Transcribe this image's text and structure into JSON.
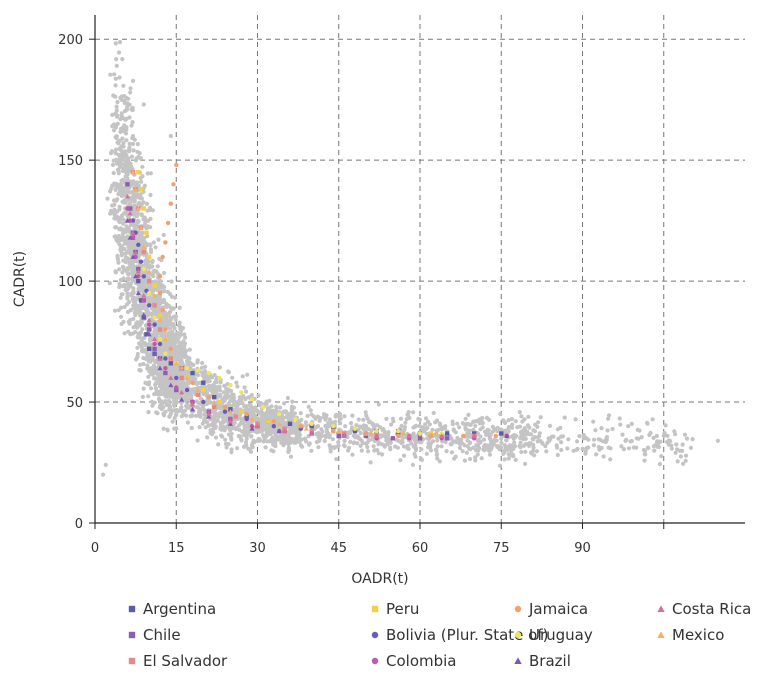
{
  "chart_data": {
    "type": "scatter",
    "title": "",
    "xlabel": "OADR(t)",
    "ylabel": "CADR(t)",
    "xlim": [
      0,
      120
    ],
    "ylim": [
      0,
      210
    ],
    "x_ticks": [
      0,
      15,
      30,
      45,
      60,
      75,
      90
    ],
    "y_ticks": [
      0,
      50,
      100,
      150,
      200
    ],
    "grid": true,
    "legend_position": "bottom",
    "background_points": {
      "color": "#c4c4c4",
      "description_of_trend": "All countries, hyperbolic decline of CADR as OADR rises",
      "curve_anchors": [
        {
          "x": 6,
          "y": 130
        },
        {
          "x": 8,
          "y": 110
        },
        {
          "x": 10,
          "y": 90
        },
        {
          "x": 13,
          "y": 70
        },
        {
          "x": 17,
          "y": 57
        },
        {
          "x": 22,
          "y": 48
        },
        {
          "x": 30,
          "y": 42
        },
        {
          "x": 40,
          "y": 38
        },
        {
          "x": 55,
          "y": 36
        },
        {
          "x": 75,
          "y": 35
        },
        {
          "x": 90,
          "y": 34
        },
        {
          "x": 110,
          "y": 34
        }
      ],
      "extreme_points": [
        {
          "x": 6.5,
          "y": 178
        },
        {
          "x": 9,
          "y": 173
        },
        {
          "x": 14,
          "y": 160
        },
        {
          "x": 1.5,
          "y": 20
        },
        {
          "x": 2,
          "y": 24
        },
        {
          "x": 115,
          "y": 34
        },
        {
          "x": 100,
          "y": 35
        },
        {
          "x": 105,
          "y": 36
        }
      ]
    },
    "series": [
      {
        "name": "Argentina",
        "color": "#5b5ea6",
        "shape": "square",
        "points": [
          [
            7,
            118
          ],
          [
            7.5,
            112
          ],
          [
            8,
            100
          ],
          [
            8.5,
            92
          ],
          [
            9,
            85
          ],
          [
            9.5,
            78
          ],
          [
            10,
            72
          ],
          [
            11,
            70
          ],
          [
            12,
            68
          ],
          [
            14,
            66
          ],
          [
            16,
            64
          ],
          [
            18,
            62
          ],
          [
            20,
            58
          ],
          [
            22,
            52
          ],
          [
            25,
            47
          ],
          [
            28,
            44
          ],
          [
            32,
            42
          ],
          [
            36,
            41
          ],
          [
            40,
            40
          ],
          [
            44,
            39
          ],
          [
            48,
            38
          ],
          [
            52,
            38
          ],
          [
            56,
            38
          ],
          [
            60,
            37
          ],
          [
            65,
            37
          ],
          [
            70,
            37
          ],
          [
            75,
            37
          ]
        ]
      },
      {
        "name": "Chile",
        "color": "#8e5fb0",
        "shape": "square",
        "points": [
          [
            6,
            140
          ],
          [
            6.5,
            130
          ],
          [
            7,
            120
          ],
          [
            8,
            105
          ],
          [
            9,
            92
          ],
          [
            10,
            80
          ],
          [
            11,
            72
          ],
          [
            13,
            62
          ],
          [
            15,
            55
          ],
          [
            18,
            50
          ],
          [
            21,
            46
          ],
          [
            25,
            43
          ],
          [
            30,
            40
          ],
          [
            35,
            38
          ],
          [
            40,
            37
          ],
          [
            45,
            36
          ],
          [
            50,
            36
          ],
          [
            55,
            35
          ],
          [
            60,
            35
          ],
          [
            65,
            35
          ],
          [
            70,
            36
          ]
        ]
      },
      {
        "name": "El Salvador",
        "color": "#e8888a",
        "shape": "square",
        "points": [
          [
            7,
            145
          ],
          [
            7.5,
            138
          ],
          [
            8,
            130
          ],
          [
            8.5,
            122
          ],
          [
            9,
            112
          ],
          [
            10,
            100
          ],
          [
            11,
            90
          ],
          [
            12,
            80
          ],
          [
            14,
            68
          ],
          [
            16,
            60
          ],
          [
            19,
            53
          ],
          [
            22,
            48
          ],
          [
            26,
            44
          ],
          [
            30,
            41
          ],
          [
            35,
            39
          ],
          [
            40,
            38
          ],
          [
            46,
            37
          ],
          [
            52,
            36
          ],
          [
            58,
            36
          ],
          [
            64,
            36
          ],
          [
            70,
            36
          ],
          [
            76,
            36
          ]
        ]
      },
      {
        "name": "Peru",
        "color": "#f2d04a",
        "shape": "square",
        "points": [
          [
            8,
            145
          ],
          [
            8.5,
            138
          ],
          [
            9,
            130
          ],
          [
            9.5,
            120
          ],
          [
            10,
            110
          ],
          [
            11,
            98
          ],
          [
            12,
            86
          ],
          [
            13,
            76
          ],
          [
            15,
            66
          ],
          [
            17,
            60
          ],
          [
            20,
            55
          ],
          [
            23,
            50
          ],
          [
            27,
            46
          ],
          [
            32,
            42
          ],
          [
            38,
            40
          ],
          [
            44,
            38
          ],
          [
            50,
            37
          ],
          [
            56,
            37
          ],
          [
            62,
            37
          ]
        ]
      },
      {
        "name": "Bolivia (Plur. State of)",
        "color": "#6a5bb8",
        "shape": "circle",
        "points": [
          [
            7,
            125
          ],
          [
            7.5,
            120
          ],
          [
            8,
            115
          ],
          [
            8.5,
            108
          ],
          [
            9,
            102
          ],
          [
            9.5,
            96
          ],
          [
            10,
            90
          ],
          [
            11,
            82
          ],
          [
            12,
            74
          ],
          [
            13,
            68
          ],
          [
            15,
            60
          ],
          [
            17,
            55
          ],
          [
            20,
            50
          ],
          [
            24,
            46
          ],
          [
            28,
            43
          ],
          [
            33,
            40
          ],
          [
            38,
            39
          ],
          [
            44,
            38
          ],
          [
            50,
            37
          ],
          [
            56,
            37
          ],
          [
            62,
            36
          ]
        ]
      },
      {
        "name": "Colombia",
        "color": "#c257b0",
        "shape": "circle",
        "points": [
          [
            6,
            130
          ],
          [
            6.5,
            125
          ],
          [
            7,
            118
          ],
          [
            7.5,
            110
          ],
          [
            8,
            102
          ],
          [
            9,
            92
          ],
          [
            10,
            82
          ],
          [
            11,
            74
          ],
          [
            13,
            64
          ],
          [
            15,
            56
          ],
          [
            18,
            50
          ],
          [
            21,
            46
          ],
          [
            25,
            43
          ],
          [
            29,
            40
          ],
          [
            34,
            38
          ],
          [
            40,
            37
          ],
          [
            46,
            36
          ],
          [
            52,
            35
          ],
          [
            58,
            35
          ],
          [
            64,
            35
          ],
          [
            70,
            35
          ],
          [
            76,
            36
          ]
        ]
      },
      {
        "name": "Jamaica",
        "color": "#f2a070",
        "shape": "circle",
        "points": [
          [
            15,
            148
          ],
          [
            14.5,
            140
          ],
          [
            14,
            132
          ],
          [
            13.5,
            124
          ],
          [
            13,
            116
          ],
          [
            12.5,
            110
          ],
          [
            12,
            102
          ],
          [
            12,
            95
          ],
          [
            12.5,
            88
          ],
          [
            13,
            80
          ],
          [
            14,
            72
          ],
          [
            16,
            64
          ],
          [
            18,
            58
          ],
          [
            21,
            52
          ],
          [
            24,
            48
          ],
          [
            28,
            45
          ],
          [
            33,
            42
          ],
          [
            38,
            40
          ],
          [
            44,
            38
          ],
          [
            50,
            37
          ],
          [
            56,
            36
          ],
          [
            62,
            36
          ],
          [
            68,
            36
          ],
          [
            74,
            36
          ]
        ]
      },
      {
        "name": "Uruguay",
        "color": "#eee660",
        "shape": "circle",
        "points": [
          [
            9,
            105
          ],
          [
            10,
            95
          ],
          [
            11,
            85
          ],
          [
            12,
            76
          ],
          [
            13,
            70
          ],
          [
            15,
            66
          ],
          [
            17,
            64
          ],
          [
            19,
            63
          ],
          [
            21,
            62
          ],
          [
            23,
            60
          ],
          [
            25,
            57
          ],
          [
            27,
            54
          ],
          [
            29,
            51
          ],
          [
            31,
            48
          ],
          [
            34,
            45
          ],
          [
            37,
            43
          ],
          [
            40,
            41
          ],
          [
            44,
            40
          ],
          [
            48,
            39
          ],
          [
            52,
            38
          ],
          [
            56,
            38
          ],
          [
            60,
            37
          ],
          [
            64,
            37
          ]
        ]
      },
      {
        "name": "Brazil",
        "color": "#7a58b5",
        "shape": "triangle",
        "points": [
          [
            6,
            125
          ],
          [
            6.5,
            118
          ],
          [
            7,
            110
          ],
          [
            7.5,
            102
          ],
          [
            8,
            95
          ],
          [
            9,
            86
          ],
          [
            10,
            78
          ],
          [
            11,
            70
          ],
          [
            12,
            64
          ],
          [
            14,
            57
          ],
          [
            16,
            51
          ],
          [
            18,
            47
          ],
          [
            21,
            44
          ],
          [
            25,
            41
          ],
          [
            29,
            39
          ],
          [
            34,
            38
          ],
          [
            40,
            37
          ],
          [
            46,
            36
          ],
          [
            52,
            36
          ],
          [
            58,
            36
          ],
          [
            64,
            36
          ],
          [
            70,
            36
          ],
          [
            76,
            36
          ]
        ]
      },
      {
        "name": "Costa Rica",
        "color": "#d8709e",
        "shape": "triangle",
        "points": [
          [
            6,
            135
          ],
          [
            6.5,
            128
          ],
          [
            7,
            120
          ],
          [
            7.5,
            112
          ],
          [
            8,
            104
          ],
          [
            9,
            94
          ],
          [
            10,
            84
          ],
          [
            11,
            76
          ],
          [
            12,
            68
          ],
          [
            14,
            60
          ],
          [
            16,
            54
          ],
          [
            18,
            49
          ],
          [
            21,
            45
          ],
          [
            25,
            42
          ],
          [
            30,
            40
          ],
          [
            35,
            38
          ],
          [
            40,
            37
          ],
          [
            46,
            36
          ],
          [
            52,
            36
          ],
          [
            58,
            36
          ],
          [
            64,
            36
          ],
          [
            70,
            36
          ]
        ]
      },
      {
        "name": "Mexico",
        "color": "#f5b060",
        "shape": "triangle",
        "points": [
          [
            7,
            145
          ],
          [
            7.5,
            138
          ],
          [
            8,
            130
          ],
          [
            8.5,
            122
          ],
          [
            9,
            114
          ],
          [
            10,
            104
          ],
          [
            11,
            94
          ],
          [
            12,
            84
          ],
          [
            13,
            76
          ],
          [
            15,
            66
          ],
          [
            17,
            60
          ],
          [
            19,
            55
          ],
          [
            22,
            50
          ],
          [
            25,
            46
          ],
          [
            29,
            43
          ],
          [
            34,
            41
          ],
          [
            39,
            39
          ],
          [
            45,
            38
          ],
          [
            51,
            37
          ],
          [
            57,
            37
          ],
          [
            63,
            37
          ]
        ]
      }
    ]
  }
}
